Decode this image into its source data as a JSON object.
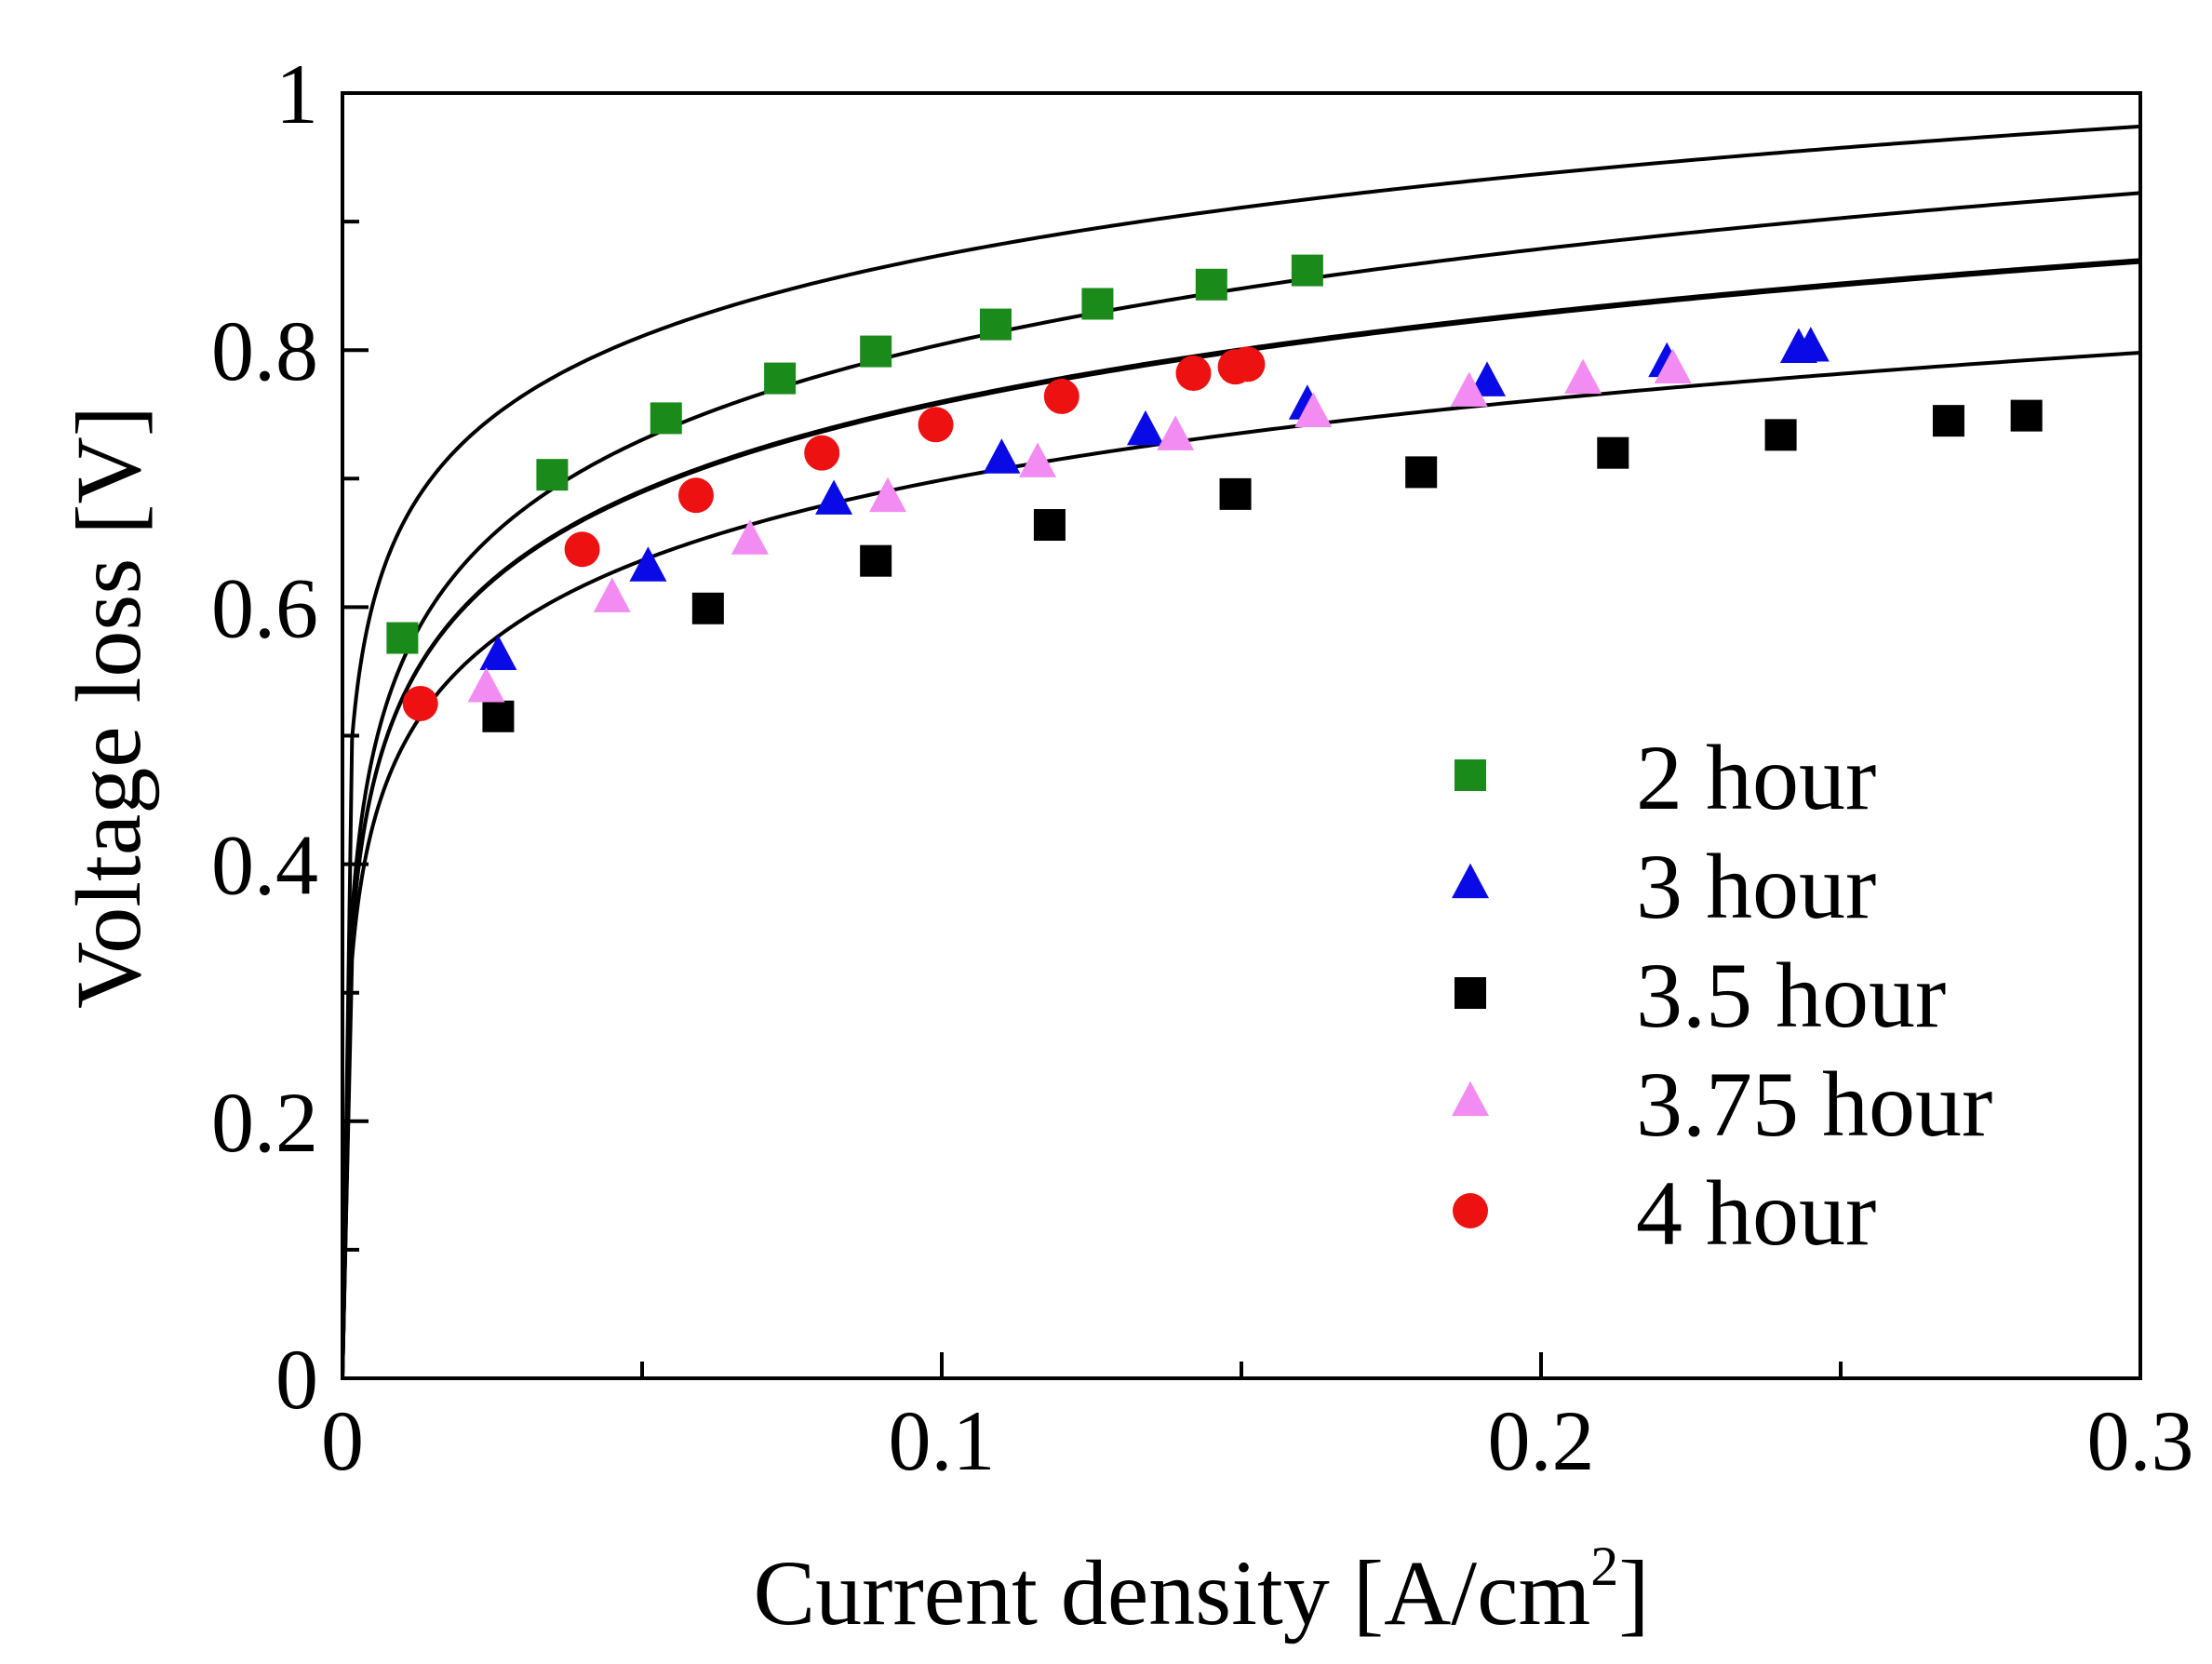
{
  "chart_data": {
    "type": "scatter",
    "title": "",
    "xlabel": "Current density [A/cm",
    "xlabel_sup": "2",
    "xlabel_close": "]",
    "ylabel": "Voltage loss [V]",
    "xlim": [
      0,
      0.3
    ],
    "ylim": [
      0,
      1
    ],
    "xticks": [
      0,
      0.1,
      0.2,
      0.3
    ],
    "xtick_labels": [
      "0",
      "0.1",
      "0.2",
      "0.3"
    ],
    "yticks": [
      0,
      0.2,
      0.4,
      0.6,
      0.8,
      1
    ],
    "ytick_labels": [
      "0",
      "0.2",
      "0.4",
      "0.6",
      "0.8",
      "1"
    ],
    "grid": false,
    "legend_position": "lower-right",
    "fit_curves": [
      {
        "series": "2 hour",
        "a": 1.0837,
        "b": 0.0911
      },
      {
        "series": "4 hour",
        "a": 1.0513,
        "b": 0.1072
      },
      {
        "series": "3 hour",
        "a": 0.9908,
        "b": 0.1002
      },
      {
        "series": "3.75 hour",
        "a": 0.9888,
        "b": 0.0999
      },
      {
        "series": "3.5 hour",
        "a": 0.9066,
        "b": 0.0902
      }
    ],
    "series": [
      {
        "name": "2 hour",
        "marker": "square",
        "color": "#1a8a1a",
        "x": [
          0.01,
          0.035,
          0.054,
          0.073,
          0.089,
          0.109,
          0.126,
          0.145,
          0.161
        ],
        "y": [
          0.576,
          0.703,
          0.747,
          0.778,
          0.799,
          0.82,
          0.836,
          0.851,
          0.862
        ]
      },
      {
        "name": "3 hour",
        "marker": "triangle",
        "color": "#0a0ae6",
        "x": [
          0.026,
          0.051,
          0.082,
          0.11,
          0.134,
          0.161,
          0.191,
          0.221,
          0.243,
          0.245
        ],
        "y": [
          0.562,
          0.631,
          0.683,
          0.715,
          0.737,
          0.757,
          0.775,
          0.79,
          0.801,
          0.802
        ]
      },
      {
        "name": "3.5 hour",
        "marker": "square",
        "color": "#000000",
        "x": [
          0.026,
          0.061,
          0.089,
          0.118,
          0.149,
          0.18,
          0.212,
          0.24,
          0.268,
          0.281
        ],
        "y": [
          0.515,
          0.599,
          0.636,
          0.664,
          0.688,
          0.705,
          0.72,
          0.734,
          0.745,
          0.749
        ]
      },
      {
        "name": "3.75 hour",
        "marker": "triangle",
        "color": "#f28cf2",
        "x": [
          0.024,
          0.045,
          0.068,
          0.091,
          0.116,
          0.139,
          0.162,
          0.188,
          0.207,
          0.222
        ],
        "y": [
          0.537,
          0.607,
          0.652,
          0.685,
          0.712,
          0.733,
          0.751,
          0.767,
          0.777,
          0.785
        ]
      },
      {
        "name": "4 hour",
        "marker": "circle",
        "color": "#ee1111",
        "x": [
          0.013,
          0.04,
          0.059,
          0.08,
          0.099,
          0.12,
          0.142,
          0.149,
          0.151
        ],
        "y": [
          0.525,
          0.645,
          0.687,
          0.72,
          0.742,
          0.764,
          0.782,
          0.787,
          0.789
        ]
      }
    ],
    "legend": [
      {
        "label": "2 hour",
        "marker": "square",
        "color": "#1a8a1a"
      },
      {
        "label": "3 hour",
        "marker": "triangle",
        "color": "#0a0ae6"
      },
      {
        "label": "3.5 hour",
        "marker": "square",
        "color": "#000000"
      },
      {
        "label": "3.75 hour",
        "marker": "triangle",
        "color": "#f28cf2"
      },
      {
        "label": "4 hour",
        "marker": "circle",
        "color": "#ee1111"
      }
    ]
  }
}
